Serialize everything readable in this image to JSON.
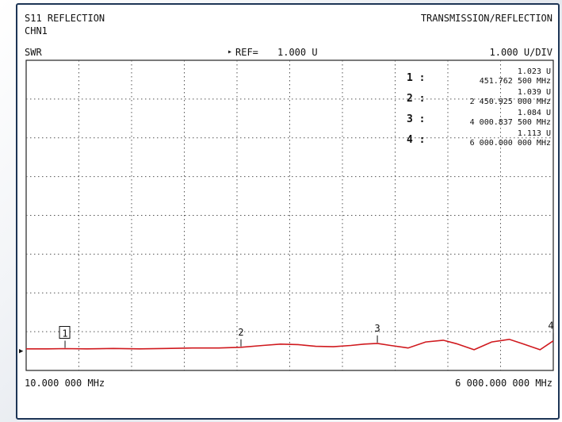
{
  "header": {
    "measurement": "S11 REFLECTION",
    "channel": "CHN1",
    "mode": "TRANSMISSION/REFLECTION",
    "format": "SWR",
    "ref_arrow": "▸",
    "ref_label": "REF=",
    "ref_value": "1.000 U",
    "scale": "1.000 U/DIV"
  },
  "footer": {
    "start_freq": "10.000 000 MHz",
    "stop_freq": "6 000.000 000 MHz"
  },
  "markers": [
    {
      "label": "1 :",
      "value": "1.023 U",
      "freq": "451.762 500 MHz"
    },
    {
      "label": "2 :",
      "value": "1.039 U",
      "freq": "2 450.925 000 MHz"
    },
    {
      "label": "3 :",
      "value": "1.084 U",
      "freq": "4 000.837 500 MHz"
    },
    {
      "label": "4 :",
      "value": "1.113 U",
      "freq": "6 000.000 000 MHz"
    }
  ],
  "colors": {
    "trace": "#d0191e",
    "frame": "#1d3556",
    "grid": "#555555"
  },
  "chart_data": {
    "type": "line",
    "x_unit": "MHz",
    "y_unit": "U",
    "xlim": [
      10,
      6000
    ],
    "ylim": [
      1.0,
      9.0
    ],
    "ref_value": 1.0,
    "units_per_div": 1.0,
    "grid": true,
    "markers": [
      {
        "name": "1",
        "x": 451.7625,
        "y": 1.023
      },
      {
        "name": "2",
        "x": 2450.925,
        "y": 1.039
      },
      {
        "name": "3",
        "x": 4000.8375,
        "y": 1.084
      },
      {
        "name": "4",
        "x": 6000.0,
        "y": 1.113
      }
    ],
    "series": [
      {
        "x": [
          10,
          250,
          451.76,
          700,
          1000,
          1300,
          1600,
          1900,
          2200,
          2450.93,
          2700,
          2900,
          3100,
          3300,
          3500,
          3700,
          3850,
          4000.84,
          4150,
          4350,
          4550,
          4750,
          4900,
          5100,
          5300,
          5500,
          5650,
          5850,
          6000
        ],
        "y": [
          1.02,
          1.02,
          1.023,
          1.02,
          1.025,
          1.02,
          1.025,
          1.03,
          1.03,
          1.039,
          1.06,
          1.075,
          1.07,
          1.05,
          1.045,
          1.06,
          1.075,
          1.084,
          1.06,
          1.03,
          1.1,
          1.12,
          1.08,
          1.01,
          1.1,
          1.13,
          1.08,
          1.01,
          1.113
        ]
      }
    ]
  }
}
